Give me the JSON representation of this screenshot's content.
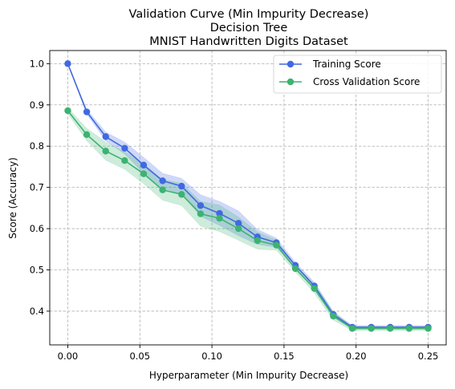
{
  "chart_data": {
    "type": "line",
    "title": [
      "Validation Curve (Min Impurity Decrease)",
      "Decision Tree",
      "MNIST Handwritten Digits Dataset"
    ],
    "xlabel": "Hyperparameter (Min Impurity Decrease)",
    "ylabel": "Score (Accuracy)",
    "xlim": [
      -0.0125,
      0.2625
    ],
    "ylim": [
      0.3182,
      1.0318
    ],
    "xticks": [
      0.0,
      0.05,
      0.1,
      0.15,
      0.2,
      0.25
    ],
    "xtick_labels": [
      "0.00",
      "0.05",
      "0.10",
      "0.15",
      "0.20",
      "0.25"
    ],
    "yticks": [
      0.4,
      0.5,
      0.6,
      0.7,
      0.8,
      0.9,
      1.0
    ],
    "ytick_labels": [
      "0.4",
      "0.5",
      "0.6",
      "0.7",
      "0.8",
      "0.9",
      "1.0"
    ],
    "grid": true,
    "legend_position": "top-right",
    "x": [
      0.0,
      0.01316,
      0.02632,
      0.03947,
      0.05263,
      0.06579,
      0.07895,
      0.09211,
      0.10526,
      0.11842,
      0.13158,
      0.14474,
      0.15789,
      0.17105,
      0.18421,
      0.19737,
      0.21053,
      0.22368,
      0.23684,
      0.25
    ],
    "series": [
      {
        "name": "Training Score",
        "color": "#4169e1",
        "values": [
          1.0,
          0.883,
          0.823,
          0.795,
          0.754,
          0.716,
          0.703,
          0.656,
          0.637,
          0.613,
          0.58,
          0.566,
          0.511,
          0.461,
          0.392,
          0.361,
          0.361,
          0.361,
          0.361,
          0.361
        ],
        "band_lower": [
          1.0,
          0.878,
          0.813,
          0.781,
          0.734,
          0.698,
          0.684,
          0.63,
          0.608,
          0.583,
          0.562,
          0.555,
          0.505,
          0.452,
          0.385,
          0.357,
          0.357,
          0.357,
          0.357,
          0.357
        ],
        "band_upper": [
          1.0,
          0.889,
          0.834,
          0.81,
          0.773,
          0.734,
          0.722,
          0.682,
          0.666,
          0.643,
          0.598,
          0.577,
          0.518,
          0.47,
          0.399,
          0.365,
          0.365,
          0.365,
          0.365,
          0.365
        ]
      },
      {
        "name": "Cross Validation Score",
        "color": "#3cb371",
        "values": [
          0.886,
          0.828,
          0.788,
          0.765,
          0.733,
          0.694,
          0.683,
          0.636,
          0.625,
          0.6,
          0.571,
          0.56,
          0.503,
          0.455,
          0.388,
          0.358,
          0.358,
          0.358,
          0.358,
          0.358
        ],
        "band_lower": [
          0.879,
          0.813,
          0.766,
          0.744,
          0.709,
          0.669,
          0.656,
          0.606,
          0.593,
          0.572,
          0.55,
          0.548,
          0.495,
          0.444,
          0.378,
          0.353,
          0.353,
          0.353,
          0.353,
          0.353
        ],
        "band_upper": [
          0.893,
          0.843,
          0.81,
          0.786,
          0.757,
          0.719,
          0.71,
          0.666,
          0.657,
          0.628,
          0.592,
          0.572,
          0.511,
          0.466,
          0.398,
          0.363,
          0.363,
          0.363,
          0.363,
          0.363
        ]
      }
    ]
  }
}
